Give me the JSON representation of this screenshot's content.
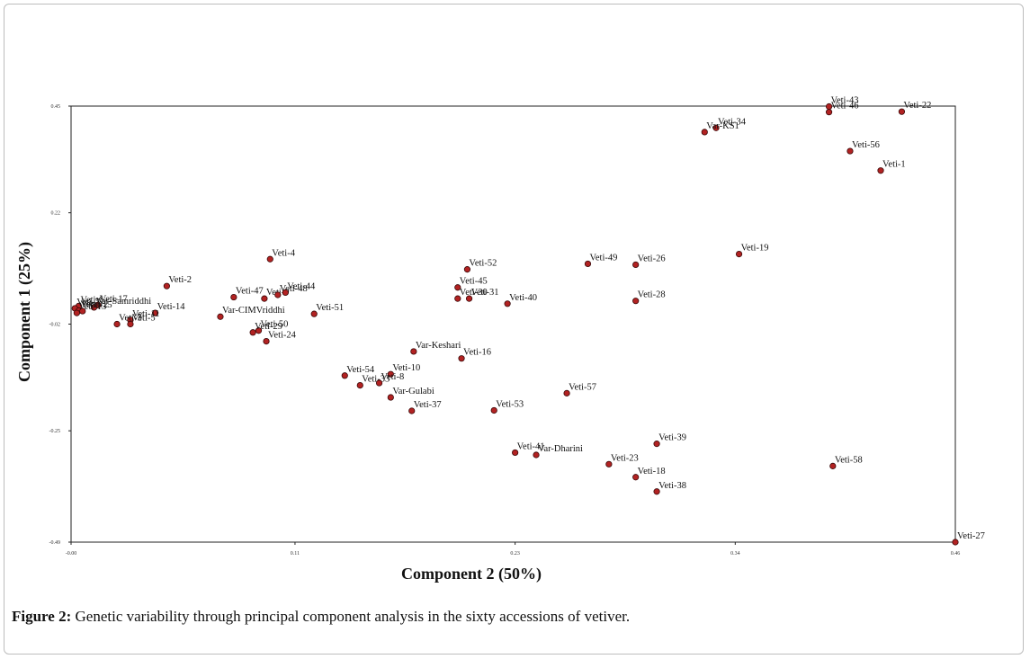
{
  "caption": {
    "lead": "Figure 2:",
    "text": "Genetic variability through principal component analysis in the sixty accessions of vetiver."
  },
  "chart_data": {
    "type": "scatter",
    "title": "",
    "xlabel": "Component 2 (50%)",
    "ylabel": "Component 1 (25%)",
    "xlim": [
      -0.002,
      0.46
    ],
    "ylim": [
      -0.49,
      0.45
    ],
    "xticks": [
      {
        "value": -0.002,
        "label": "-0.00"
      },
      {
        "value": 0.115,
        "label": "0.11"
      },
      {
        "value": 0.23,
        "label": "0.23"
      },
      {
        "value": 0.345,
        "label": "0.34"
      },
      {
        "value": 0.46,
        "label": "0.46"
      }
    ],
    "yticks": [
      {
        "value": 0.45,
        "label": "0.45"
      },
      {
        "value": 0.22,
        "label": "0.22"
      },
      {
        "value": -0.02,
        "label": "-0.02"
      },
      {
        "value": -0.25,
        "label": "-0.25"
      },
      {
        "value": -0.49,
        "label": "-0.49"
      }
    ],
    "marker_color": "#b22222",
    "points": [
      {
        "label": "Veti-43",
        "x": 0.394,
        "y": 0.449
      },
      {
        "label": "Veti-46",
        "x": 0.394,
        "y": 0.437
      },
      {
        "label": "Veti-22",
        "x": 0.432,
        "y": 0.438
      },
      {
        "label": "Veti-34",
        "x": 0.335,
        "y": 0.403
      },
      {
        "label": "Var-KS1",
        "x": 0.329,
        "y": 0.394
      },
      {
        "label": "Veti-56",
        "x": 0.405,
        "y": 0.353
      },
      {
        "label": "Veti-1",
        "x": 0.421,
        "y": 0.311
      },
      {
        "label": "Veti-19",
        "x": 0.347,
        "y": 0.131
      },
      {
        "label": "Veti-49",
        "x": 0.268,
        "y": 0.11
      },
      {
        "label": "Veti-26",
        "x": 0.293,
        "y": 0.108
      },
      {
        "label": "Veti-52",
        "x": 0.205,
        "y": 0.098
      },
      {
        "label": "Veti-45",
        "x": 0.2,
        "y": 0.059
      },
      {
        "label": "Veti-30",
        "x": 0.2,
        "y": 0.035
      },
      {
        "label": "Veti-31",
        "x": 0.206,
        "y": 0.035
      },
      {
        "label": "Veti-40",
        "x": 0.226,
        "y": 0.024
      },
      {
        "label": "Veti-28",
        "x": 0.293,
        "y": 0.03
      },
      {
        "label": "Veti-4",
        "x": 0.102,
        "y": 0.12
      },
      {
        "label": "Veti-2",
        "x": 0.048,
        "y": 0.062
      },
      {
        "label": "Veti-47",
        "x": 0.083,
        "y": 0.038
      },
      {
        "label": "Veti-9",
        "x": 0.099,
        "y": 0.035
      },
      {
        "label": "Veti-48",
        "x": 0.106,
        "y": 0.043
      },
      {
        "label": "Veti-44",
        "x": 0.11,
        "y": 0.048
      },
      {
        "label": "Veti-51",
        "x": 0.125,
        "y": 0.002
      },
      {
        "label": "Var-CIMVriddhi",
        "x": 0.076,
        "y": -0.004
      },
      {
        "label": "Veti-50",
        "x": 0.096,
        "y": -0.034
      },
      {
        "label": "Veti-29",
        "x": 0.093,
        "y": -0.038
      },
      {
        "label": "Veti-24",
        "x": 0.1,
        "y": -0.057
      },
      {
        "label": "Veti-14",
        "x": 0.042,
        "y": 0.004
      },
      {
        "label": "Veti-11",
        "x": 0.029,
        "y": -0.011
      },
      {
        "label": "Veti-5",
        "x": 0.029,
        "y": -0.02
      },
      {
        "label": "Veti-3",
        "x": 0.022,
        "y": -0.02
      },
      {
        "label": "Veti-17",
        "x": 0.012,
        "y": 0.021
      },
      {
        "label": "Var-Samriddhi",
        "x": 0.01,
        "y": 0.016
      },
      {
        "label": "Veti-6",
        "x": 0.002,
        "y": 0.019
      },
      {
        "label": "Veti-7",
        "x": 0.0,
        "y": 0.014
      },
      {
        "label": "Veti-12",
        "x": 0.002,
        "y": 0.009
      },
      {
        "label": "Veti-13",
        "x": 0.001,
        "y": 0.004
      },
      {
        "label": "Veti-15",
        "x": 0.004,
        "y": 0.008
      },
      {
        "label": "Var-Keshari",
        "x": 0.177,
        "y": -0.079
      },
      {
        "label": "Veti-16",
        "x": 0.202,
        "y": -0.094
      },
      {
        "label": "Veti-54",
        "x": 0.141,
        "y": -0.131
      },
      {
        "label": "Veti-10",
        "x": 0.165,
        "y": -0.128
      },
      {
        "label": "Veti-33",
        "x": 0.149,
        "y": -0.152
      },
      {
        "label": "Veti-8",
        "x": 0.159,
        "y": -0.147
      },
      {
        "label": "Var-Gulabi",
        "x": 0.165,
        "y": -0.178
      },
      {
        "label": "Veti-37",
        "x": 0.176,
        "y": -0.207
      },
      {
        "label": "Veti-53",
        "x": 0.219,
        "y": -0.206
      },
      {
        "label": "Veti-57",
        "x": 0.257,
        "y": -0.169
      },
      {
        "label": "Veti-39",
        "x": 0.304,
        "y": -0.278
      },
      {
        "label": "Veti-41",
        "x": 0.23,
        "y": -0.297
      },
      {
        "label": "Var-Dharini",
        "x": 0.241,
        "y": -0.302
      },
      {
        "label": "Veti-23",
        "x": 0.279,
        "y": -0.322
      },
      {
        "label": "Veti-18",
        "x": 0.293,
        "y": -0.35
      },
      {
        "label": "Veti-38",
        "x": 0.304,
        "y": -0.381
      },
      {
        "label": "Veti-58",
        "x": 0.396,
        "y": -0.326
      },
      {
        "label": "Veti-27",
        "x": 0.46,
        "y": -0.49
      }
    ]
  }
}
